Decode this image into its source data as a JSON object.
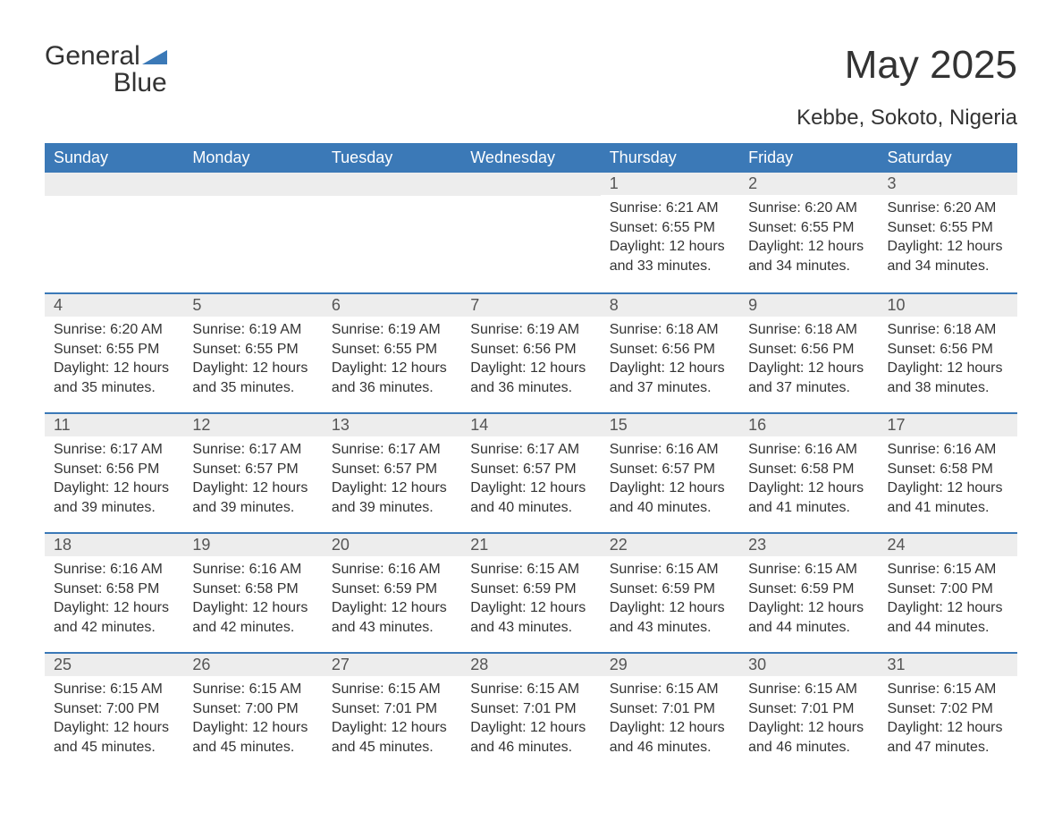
{
  "brand": {
    "word1": "General",
    "word2": "Blue"
  },
  "title": "May 2025",
  "location": "Kebbe, Sokoto, Nigeria",
  "colors": {
    "header_bg": "#3b79b7",
    "header_text": "#ffffff",
    "daynum_bg": "#ededed",
    "border": "#3b79b7",
    "body_text": "#333333",
    "page_bg": "#ffffff"
  },
  "typography": {
    "title_fontsize": 44,
    "location_fontsize": 24,
    "header_fontsize": 18,
    "daynum_fontsize": 18,
    "body_fontsize": 16
  },
  "calendar": {
    "type": "table",
    "columns": [
      "Sunday",
      "Monday",
      "Tuesday",
      "Wednesday",
      "Thursday",
      "Friday",
      "Saturday"
    ],
    "weeks": [
      [
        null,
        null,
        null,
        null,
        {
          "num": "1",
          "sunrise": "Sunrise: 6:21 AM",
          "sunset": "Sunset: 6:55 PM",
          "daylight": "Daylight: 12 hours and 33 minutes."
        },
        {
          "num": "2",
          "sunrise": "Sunrise: 6:20 AM",
          "sunset": "Sunset: 6:55 PM",
          "daylight": "Daylight: 12 hours and 34 minutes."
        },
        {
          "num": "3",
          "sunrise": "Sunrise: 6:20 AM",
          "sunset": "Sunset: 6:55 PM",
          "daylight": "Daylight: 12 hours and 34 minutes."
        }
      ],
      [
        {
          "num": "4",
          "sunrise": "Sunrise: 6:20 AM",
          "sunset": "Sunset: 6:55 PM",
          "daylight": "Daylight: 12 hours and 35 minutes."
        },
        {
          "num": "5",
          "sunrise": "Sunrise: 6:19 AM",
          "sunset": "Sunset: 6:55 PM",
          "daylight": "Daylight: 12 hours and 35 minutes."
        },
        {
          "num": "6",
          "sunrise": "Sunrise: 6:19 AM",
          "sunset": "Sunset: 6:55 PM",
          "daylight": "Daylight: 12 hours and 36 minutes."
        },
        {
          "num": "7",
          "sunrise": "Sunrise: 6:19 AM",
          "sunset": "Sunset: 6:56 PM",
          "daylight": "Daylight: 12 hours and 36 minutes."
        },
        {
          "num": "8",
          "sunrise": "Sunrise: 6:18 AM",
          "sunset": "Sunset: 6:56 PM",
          "daylight": "Daylight: 12 hours and 37 minutes."
        },
        {
          "num": "9",
          "sunrise": "Sunrise: 6:18 AM",
          "sunset": "Sunset: 6:56 PM",
          "daylight": "Daylight: 12 hours and 37 minutes."
        },
        {
          "num": "10",
          "sunrise": "Sunrise: 6:18 AM",
          "sunset": "Sunset: 6:56 PM",
          "daylight": "Daylight: 12 hours and 38 minutes."
        }
      ],
      [
        {
          "num": "11",
          "sunrise": "Sunrise: 6:17 AM",
          "sunset": "Sunset: 6:56 PM",
          "daylight": "Daylight: 12 hours and 39 minutes."
        },
        {
          "num": "12",
          "sunrise": "Sunrise: 6:17 AM",
          "sunset": "Sunset: 6:57 PM",
          "daylight": "Daylight: 12 hours and 39 minutes."
        },
        {
          "num": "13",
          "sunrise": "Sunrise: 6:17 AM",
          "sunset": "Sunset: 6:57 PM",
          "daylight": "Daylight: 12 hours and 39 minutes."
        },
        {
          "num": "14",
          "sunrise": "Sunrise: 6:17 AM",
          "sunset": "Sunset: 6:57 PM",
          "daylight": "Daylight: 12 hours and 40 minutes."
        },
        {
          "num": "15",
          "sunrise": "Sunrise: 6:16 AM",
          "sunset": "Sunset: 6:57 PM",
          "daylight": "Daylight: 12 hours and 40 minutes."
        },
        {
          "num": "16",
          "sunrise": "Sunrise: 6:16 AM",
          "sunset": "Sunset: 6:58 PM",
          "daylight": "Daylight: 12 hours and 41 minutes."
        },
        {
          "num": "17",
          "sunrise": "Sunrise: 6:16 AM",
          "sunset": "Sunset: 6:58 PM",
          "daylight": "Daylight: 12 hours and 41 minutes."
        }
      ],
      [
        {
          "num": "18",
          "sunrise": "Sunrise: 6:16 AM",
          "sunset": "Sunset: 6:58 PM",
          "daylight": "Daylight: 12 hours and 42 minutes."
        },
        {
          "num": "19",
          "sunrise": "Sunrise: 6:16 AM",
          "sunset": "Sunset: 6:58 PM",
          "daylight": "Daylight: 12 hours and 42 minutes."
        },
        {
          "num": "20",
          "sunrise": "Sunrise: 6:16 AM",
          "sunset": "Sunset: 6:59 PM",
          "daylight": "Daylight: 12 hours and 43 minutes."
        },
        {
          "num": "21",
          "sunrise": "Sunrise: 6:15 AM",
          "sunset": "Sunset: 6:59 PM",
          "daylight": "Daylight: 12 hours and 43 minutes."
        },
        {
          "num": "22",
          "sunrise": "Sunrise: 6:15 AM",
          "sunset": "Sunset: 6:59 PM",
          "daylight": "Daylight: 12 hours and 43 minutes."
        },
        {
          "num": "23",
          "sunrise": "Sunrise: 6:15 AM",
          "sunset": "Sunset: 6:59 PM",
          "daylight": "Daylight: 12 hours and 44 minutes."
        },
        {
          "num": "24",
          "sunrise": "Sunrise: 6:15 AM",
          "sunset": "Sunset: 7:00 PM",
          "daylight": "Daylight: 12 hours and 44 minutes."
        }
      ],
      [
        {
          "num": "25",
          "sunrise": "Sunrise: 6:15 AM",
          "sunset": "Sunset: 7:00 PM",
          "daylight": "Daylight: 12 hours and 45 minutes."
        },
        {
          "num": "26",
          "sunrise": "Sunrise: 6:15 AM",
          "sunset": "Sunset: 7:00 PM",
          "daylight": "Daylight: 12 hours and 45 minutes."
        },
        {
          "num": "27",
          "sunrise": "Sunrise: 6:15 AM",
          "sunset": "Sunset: 7:01 PM",
          "daylight": "Daylight: 12 hours and 45 minutes."
        },
        {
          "num": "28",
          "sunrise": "Sunrise: 6:15 AM",
          "sunset": "Sunset: 7:01 PM",
          "daylight": "Daylight: 12 hours and 46 minutes."
        },
        {
          "num": "29",
          "sunrise": "Sunrise: 6:15 AM",
          "sunset": "Sunset: 7:01 PM",
          "daylight": "Daylight: 12 hours and 46 minutes."
        },
        {
          "num": "30",
          "sunrise": "Sunrise: 6:15 AM",
          "sunset": "Sunset: 7:01 PM",
          "daylight": "Daylight: 12 hours and 46 minutes."
        },
        {
          "num": "31",
          "sunrise": "Sunrise: 6:15 AM",
          "sunset": "Sunset: 7:02 PM",
          "daylight": "Daylight: 12 hours and 47 minutes."
        }
      ]
    ]
  }
}
